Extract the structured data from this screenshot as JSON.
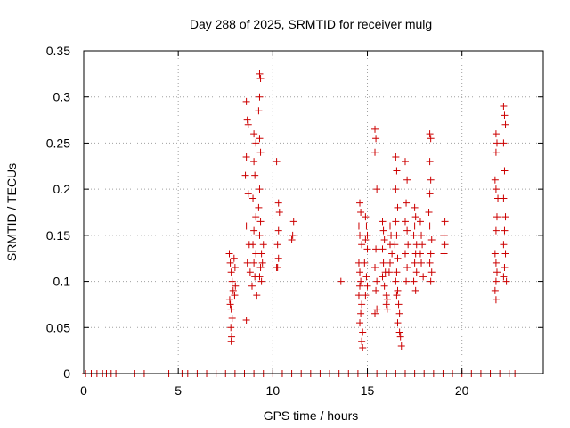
{
  "chart_data": {
    "type": "scatter",
    "title": "Day 288 of 2025, SRMTID for receiver mulg",
    "xlabel": "GPS time / hours",
    "ylabel": "SRMTID / TECUs",
    "xlim": [
      0,
      24.3
    ],
    "ylim": [
      0,
      0.35
    ],
    "x_ticks": [
      0,
      5,
      10,
      15,
      20
    ],
    "x_tick_labels": [
      "0",
      "5",
      "10",
      "15",
      "20"
    ],
    "y_ticks": [
      0,
      0.05,
      0.1,
      0.15,
      0.2,
      0.25,
      0.3,
      0.35
    ],
    "y_tick_labels": [
      "0",
      "0.05",
      "0.1",
      "0.15",
      "0.2",
      "0.25",
      "0.3",
      "0.35"
    ],
    "grid": true,
    "marker": "+",
    "series": [
      {
        "name": "SRMTID",
        "color": "#cc0000",
        "points": [
          [
            7.7,
            0.13
          ],
          [
            7.75,
            0.12
          ],
          [
            7.8,
            0.11
          ],
          [
            7.85,
            0.1
          ],
          [
            7.9,
            0.09
          ],
          [
            7.72,
            0.08
          ],
          [
            7.8,
            0.07
          ],
          [
            7.85,
            0.06
          ],
          [
            7.78,
            0.05
          ],
          [
            7.82,
            0.04
          ],
          [
            7.8,
            0.035
          ],
          [
            7.95,
            0.125
          ],
          [
            8.0,
            0.115
          ],
          [
            7.98,
            0.085
          ],
          [
            7.75,
            0.075
          ],
          [
            8.02,
            0.095
          ],
          [
            8.6,
            0.295
          ],
          [
            8.65,
            0.275
          ],
          [
            8.7,
            0.27
          ],
          [
            8.6,
            0.235
          ],
          [
            8.55,
            0.215
          ],
          [
            8.7,
            0.195
          ],
          [
            8.6,
            0.16
          ],
          [
            8.75,
            0.14
          ],
          [
            8.65,
            0.12
          ],
          [
            8.8,
            0.11
          ],
          [
            8.6,
            0.058
          ],
          [
            9.0,
            0.26
          ],
          [
            9.1,
            0.25
          ],
          [
            9.0,
            0.23
          ],
          [
            9.05,
            0.215
          ],
          [
            8.95,
            0.19
          ],
          [
            9.1,
            0.17
          ],
          [
            9.0,
            0.155
          ],
          [
            8.95,
            0.14
          ],
          [
            9.1,
            0.13
          ],
          [
            9.0,
            0.12
          ],
          [
            9.05,
            0.105
          ],
          [
            8.9,
            0.095
          ],
          [
            9.15,
            0.085
          ],
          [
            9.3,
            0.325
          ],
          [
            9.35,
            0.32
          ],
          [
            9.3,
            0.3
          ],
          [
            9.25,
            0.285
          ],
          [
            9.3,
            0.255
          ],
          [
            9.35,
            0.24
          ],
          [
            9.3,
            0.2
          ],
          [
            9.25,
            0.18
          ],
          [
            9.35,
            0.165
          ],
          [
            9.3,
            0.15
          ],
          [
            9.4,
            0.13
          ],
          [
            9.35,
            0.115
          ],
          [
            9.3,
            0.105
          ],
          [
            9.4,
            0.1
          ],
          [
            9.5,
            0.14
          ],
          [
            9.45,
            0.12
          ],
          [
            10.2,
            0.23
          ],
          [
            10.3,
            0.185
          ],
          [
            10.35,
            0.175
          ],
          [
            10.3,
            0.155
          ],
          [
            10.25,
            0.14
          ],
          [
            10.3,
            0.125
          ],
          [
            10.2,
            0.115
          ],
          [
            10.25,
            0.115
          ],
          [
            11.1,
            0.165
          ],
          [
            11.05,
            0.15
          ],
          [
            11.0,
            0.145
          ],
          [
            13.6,
            0.1
          ],
          [
            14.6,
            0.185
          ],
          [
            14.65,
            0.175
          ],
          [
            14.55,
            0.16
          ],
          [
            14.6,
            0.15
          ],
          [
            14.7,
            0.14
          ],
          [
            14.55,
            0.12
          ],
          [
            14.6,
            0.11
          ],
          [
            14.65,
            0.1
          ],
          [
            14.6,
            0.095
          ],
          [
            14.55,
            0.085
          ],
          [
            14.7,
            0.075
          ],
          [
            14.65,
            0.065
          ],
          [
            14.6,
            0.055
          ],
          [
            14.75,
            0.045
          ],
          [
            14.7,
            0.035
          ],
          [
            14.75,
            0.028
          ],
          [
            14.9,
            0.17
          ],
          [
            14.95,
            0.16
          ],
          [
            15.0,
            0.15
          ],
          [
            14.9,
            0.145
          ],
          [
            15.0,
            0.135
          ],
          [
            14.85,
            0.12
          ],
          [
            14.95,
            0.105
          ],
          [
            15.0,
            0.095
          ],
          [
            14.9,
            0.085
          ],
          [
            15.4,
            0.265
          ],
          [
            15.45,
            0.255
          ],
          [
            15.4,
            0.24
          ],
          [
            15.5,
            0.2
          ],
          [
            15.45,
            0.135
          ],
          [
            15.4,
            0.115
          ],
          [
            15.5,
            0.1
          ],
          [
            15.45,
            0.09
          ],
          [
            15.5,
            0.07
          ],
          [
            15.4,
            0.065
          ],
          [
            15.8,
            0.165
          ],
          [
            15.85,
            0.155
          ],
          [
            15.9,
            0.145
          ],
          [
            15.8,
            0.135
          ],
          [
            15.85,
            0.12
          ],
          [
            15.95,
            0.11
          ],
          [
            15.8,
            0.105
          ],
          [
            15.9,
            0.095
          ],
          [
            16.0,
            0.085
          ],
          [
            16.05,
            0.08
          ],
          [
            16.0,
            0.075
          ],
          [
            16.05,
            0.07
          ],
          [
            16.2,
            0.16
          ],
          [
            16.25,
            0.15
          ],
          [
            16.2,
            0.14
          ],
          [
            16.3,
            0.13
          ],
          [
            16.2,
            0.12
          ],
          [
            16.15,
            0.11
          ],
          [
            16.5,
            0.235
          ],
          [
            16.55,
            0.22
          ],
          [
            16.5,
            0.2
          ],
          [
            16.6,
            0.18
          ],
          [
            16.5,
            0.165
          ],
          [
            16.55,
            0.15
          ],
          [
            16.45,
            0.14
          ],
          [
            16.6,
            0.125
          ],
          [
            16.55,
            0.11
          ],
          [
            16.5,
            0.1
          ],
          [
            16.6,
            0.09
          ],
          [
            16.55,
            0.085
          ],
          [
            16.65,
            0.075
          ],
          [
            16.7,
            0.065
          ],
          [
            16.6,
            0.055
          ],
          [
            16.7,
            0.045
          ],
          [
            16.75,
            0.04
          ],
          [
            16.8,
            0.03
          ],
          [
            17.0,
            0.23
          ],
          [
            17.1,
            0.21
          ],
          [
            17.05,
            0.185
          ],
          [
            17.0,
            0.165
          ],
          [
            17.1,
            0.155
          ],
          [
            17.15,
            0.14
          ],
          [
            17.0,
            0.13
          ],
          [
            17.1,
            0.115
          ],
          [
            17.05,
            0.1
          ],
          [
            17.5,
            0.18
          ],
          [
            17.55,
            0.17
          ],
          [
            17.5,
            0.16
          ],
          [
            17.45,
            0.15
          ],
          [
            17.6,
            0.14
          ],
          [
            17.55,
            0.13
          ],
          [
            17.5,
            0.12
          ],
          [
            17.6,
            0.11
          ],
          [
            17.45,
            0.1
          ],
          [
            17.55,
            0.09
          ],
          [
            17.8,
            0.165
          ],
          [
            17.85,
            0.15
          ],
          [
            17.9,
            0.14
          ],
          [
            17.8,
            0.13
          ],
          [
            17.85,
            0.12
          ],
          [
            17.95,
            0.105
          ],
          [
            18.3,
            0.26
          ],
          [
            18.35,
            0.255
          ],
          [
            18.3,
            0.23
          ],
          [
            18.35,
            0.21
          ],
          [
            18.3,
            0.195
          ],
          [
            18.25,
            0.175
          ],
          [
            18.3,
            0.16
          ],
          [
            18.4,
            0.145
          ],
          [
            18.35,
            0.13
          ],
          [
            18.3,
            0.12
          ],
          [
            18.4,
            0.11
          ],
          [
            18.35,
            0.1
          ],
          [
            19.1,
            0.165
          ],
          [
            19.05,
            0.15
          ],
          [
            19.1,
            0.14
          ],
          [
            19.05,
            0.13
          ],
          [
            21.8,
            0.26
          ],
          [
            21.85,
            0.25
          ],
          [
            21.8,
            0.24
          ],
          [
            21.75,
            0.21
          ],
          [
            21.8,
            0.2
          ],
          [
            21.9,
            0.19
          ],
          [
            21.85,
            0.17
          ],
          [
            21.8,
            0.155
          ],
          [
            21.75,
            0.13
          ],
          [
            21.8,
            0.12
          ],
          [
            21.85,
            0.11
          ],
          [
            21.8,
            0.1
          ],
          [
            21.75,
            0.09
          ],
          [
            21.8,
            0.08
          ],
          [
            22.2,
            0.29
          ],
          [
            22.25,
            0.28
          ],
          [
            22.3,
            0.27
          ],
          [
            22.2,
            0.25
          ],
          [
            22.25,
            0.22
          ],
          [
            22.2,
            0.19
          ],
          [
            22.3,
            0.17
          ],
          [
            22.25,
            0.155
          ],
          [
            22.2,
            0.14
          ],
          [
            22.3,
            0.13
          ],
          [
            22.25,
            0.115
          ],
          [
            22.2,
            0.105
          ],
          [
            22.35,
            0.1
          ],
          [
            0.1,
            0
          ],
          [
            0.4,
            0
          ],
          [
            0.7,
            0
          ],
          [
            1.0,
            0
          ],
          [
            1.2,
            0
          ],
          [
            1.45,
            0
          ],
          [
            1.7,
            0
          ],
          [
            2.7,
            0
          ],
          [
            3.2,
            0
          ],
          [
            4.5,
            0
          ],
          [
            5.2,
            0
          ],
          [
            5.5,
            0
          ],
          [
            6.0,
            0
          ],
          [
            6.5,
            0
          ],
          [
            7.0,
            0
          ],
          [
            7.5,
            0
          ],
          [
            8.0,
            0
          ],
          [
            8.5,
            0
          ],
          [
            9.0,
            0
          ],
          [
            9.5,
            0
          ],
          [
            10.0,
            0
          ],
          [
            10.5,
            0
          ],
          [
            11.0,
            0
          ],
          [
            11.5,
            0
          ],
          [
            12.0,
            0
          ],
          [
            12.5,
            0
          ],
          [
            13.0,
            0
          ],
          [
            13.5,
            0
          ],
          [
            14.0,
            0
          ],
          [
            14.5,
            0
          ],
          [
            15.0,
            0
          ],
          [
            15.5,
            0
          ],
          [
            16.0,
            0
          ],
          [
            16.5,
            0
          ],
          [
            17.0,
            0
          ],
          [
            17.5,
            0
          ],
          [
            18.0,
            0
          ],
          [
            18.5,
            0
          ],
          [
            19.0,
            0
          ],
          [
            19.5,
            0
          ],
          [
            20.0,
            0
          ],
          [
            20.5,
            0
          ],
          [
            21.0,
            0
          ],
          [
            21.5,
            0
          ],
          [
            22.0,
            0
          ],
          [
            22.5,
            0
          ],
          [
            22.8,
            0
          ]
        ]
      }
    ]
  }
}
